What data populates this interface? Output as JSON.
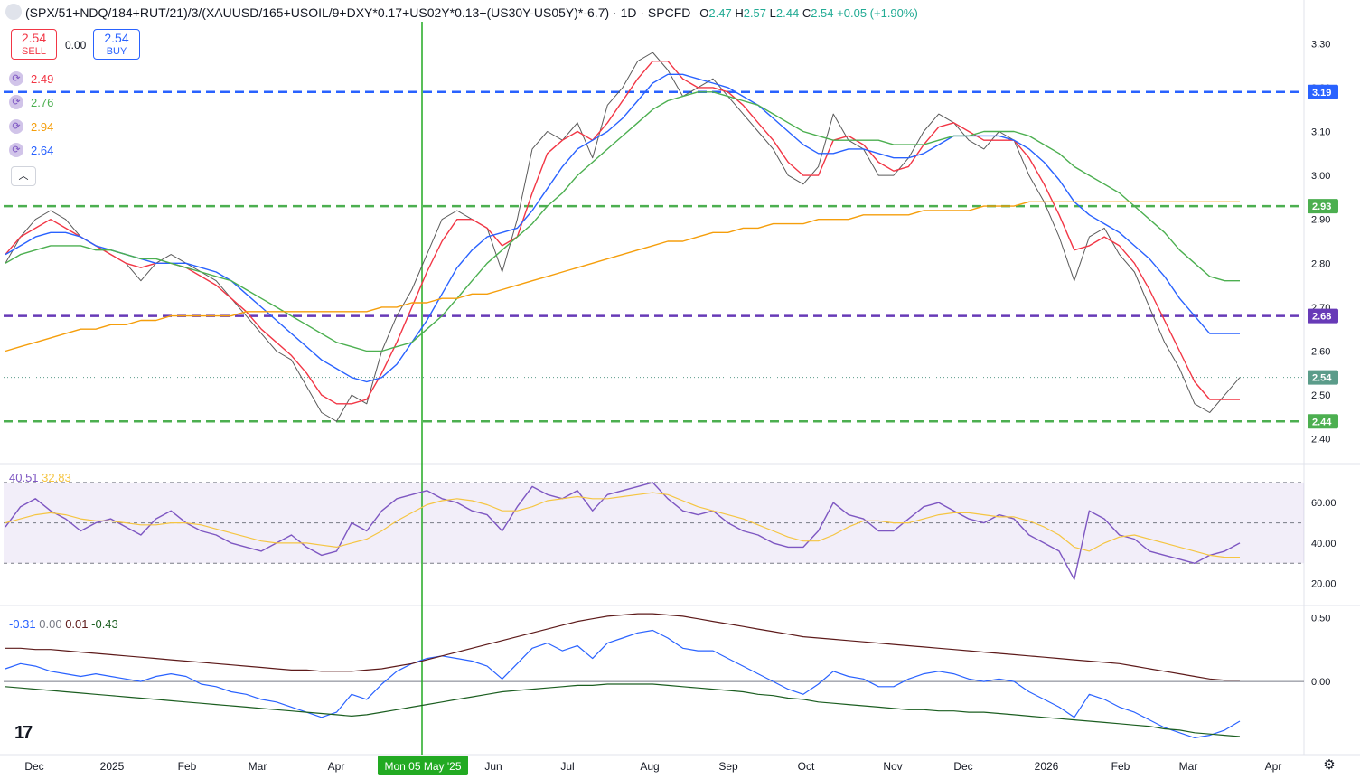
{
  "header": {
    "symbol": "(SPX/51+NDQ/184+RUT/21)/3/(XAUUSD/165+USOIL/9+DXY*0.17+US02Y*0.13+(US30Y-US05Y)*-6.7) · 1D · SPCFD",
    "open_label": "O",
    "open": "2.47",
    "high_label": "H",
    "high": "2.57",
    "low_label": "L",
    "low": "2.44",
    "close_label": "C",
    "close": "2.54",
    "change": "+0.05 (+1.90%)"
  },
  "trade": {
    "sell_price": "2.54",
    "sell_label": "SELL",
    "spread": "0.00",
    "buy_price": "2.54",
    "buy_label": "BUY"
  },
  "moving_averages": [
    {
      "value": "2.49",
      "color": "#f23645",
      "icon": "refresh-icon"
    },
    {
      "value": "2.76",
      "color": "#4caf50",
      "icon": "refresh-icon"
    },
    {
      "value": "2.94",
      "color": "#f59e0b",
      "icon": "refresh-icon"
    },
    {
      "value": "2.64",
      "color": "#2962ff",
      "icon": "refresh-icon"
    }
  ],
  "collapse_icon": "chevron-up-icon",
  "rsi_legend": {
    "rsi": "40.51",
    "rsi_color": "#7e57c2",
    "ma": "32.83",
    "ma_color": "#f5c542"
  },
  "macd_legend": {
    "v1": "-0.31",
    "v1_color": "#2962ff",
    "v2": "0.00",
    "v2_color": "#787b86",
    "v3": "0.01",
    "v3_color": "#5d1a1a",
    "v4": "-0.43",
    "v4_color": "#1b5e20"
  },
  "cursor_date_label": "Mon 05 May '25",
  "chart_data": [
    {
      "type": "line",
      "panel": "price",
      "y_ticks": [
        "2.40",
        "2.50",
        "2.60",
        "2.70",
        "2.80",
        "2.90",
        "3.00",
        "3.10",
        "3.20",
        "3.30"
      ],
      "ylim": [
        2.35,
        3.35
      ],
      "x_labels": [
        "Dec",
        "2025",
        "Feb",
        "Mar",
        "Apr",
        "Mon 05 May '25",
        "Jun",
        "Jul",
        "Aug",
        "Sep",
        "Oct",
        "Nov",
        "Dec",
        "2026",
        "Feb",
        "Mar",
        "Apr"
      ],
      "horizontal_levels": [
        {
          "value": 3.19,
          "label": "3.19",
          "color": "#2962ff",
          "style": "dashed"
        },
        {
          "value": 2.93,
          "label": "2.93",
          "color": "#4caf50",
          "style": "dashed"
        },
        {
          "value": 2.68,
          "label": "2.68",
          "color": "#673ab7",
          "style": "dashed"
        },
        {
          "value": 2.44,
          "label": "2.44",
          "color": "#4caf50",
          "style": "dashed"
        },
        {
          "value": 2.54,
          "label": "2.54",
          "color": "#5b9c8a",
          "style": "dotted"
        }
      ],
      "series": [
        {
          "color": "#5a5a5a",
          "role": "price",
          "values": [
            2.8,
            2.86,
            2.9,
            2.92,
            2.9,
            2.86,
            2.84,
            2.82,
            2.8,
            2.76,
            2.8,
            2.82,
            2.8,
            2.78,
            2.76,
            2.72,
            2.68,
            2.64,
            2.6,
            2.58,
            2.52,
            2.46,
            2.44,
            2.5,
            2.48,
            2.6,
            2.68,
            2.74,
            2.82,
            2.9,
            2.92,
            2.9,
            2.88,
            2.78,
            2.9,
            3.06,
            3.1,
            3.08,
            3.12,
            3.04,
            3.16,
            3.2,
            3.26,
            3.28,
            3.24,
            3.18,
            3.2,
            3.22,
            3.18,
            3.14,
            3.1,
            3.06,
            3.0,
            2.98,
            3.02,
            3.14,
            3.08,
            3.06,
            3.0,
            3.0,
            3.04,
            3.1,
            3.14,
            3.12,
            3.08,
            3.06,
            3.1,
            3.08,
            3.0,
            2.94,
            2.86,
            2.76,
            2.86,
            2.88,
            2.82,
            2.78,
            2.7,
            2.62,
            2.56,
            2.48,
            2.46,
            2.5,
            2.54
          ]
        },
        {
          "color": "#f23645",
          "role": "ma-short",
          "values": [
            2.82,
            2.86,
            2.88,
            2.9,
            2.88,
            2.86,
            2.84,
            2.82,
            2.8,
            2.79,
            2.8,
            2.8,
            2.79,
            2.77,
            2.75,
            2.72,
            2.69,
            2.65,
            2.62,
            2.59,
            2.55,
            2.5,
            2.48,
            2.48,
            2.49,
            2.55,
            2.62,
            2.7,
            2.78,
            2.85,
            2.9,
            2.9,
            2.88,
            2.84,
            2.86,
            2.96,
            3.05,
            3.08,
            3.1,
            3.08,
            3.12,
            3.17,
            3.22,
            3.26,
            3.26,
            3.22,
            3.2,
            3.2,
            3.19,
            3.16,
            3.12,
            3.08,
            3.03,
            3.0,
            3.0,
            3.08,
            3.09,
            3.07,
            3.03,
            3.01,
            3.02,
            3.07,
            3.11,
            3.12,
            3.1,
            3.08,
            3.08,
            3.08,
            3.04,
            2.98,
            2.91,
            2.83,
            2.84,
            2.86,
            2.84,
            2.8,
            2.74,
            2.67,
            2.6,
            2.53,
            2.49,
            2.49,
            2.49
          ]
        },
        {
          "color": "#2962ff",
          "role": "ma-medium",
          "values": [
            2.82,
            2.84,
            2.86,
            2.87,
            2.87,
            2.86,
            2.84,
            2.83,
            2.82,
            2.81,
            2.8,
            2.8,
            2.8,
            2.79,
            2.78,
            2.76,
            2.73,
            2.7,
            2.67,
            2.64,
            2.61,
            2.58,
            2.56,
            2.54,
            2.53,
            2.54,
            2.57,
            2.62,
            2.67,
            2.73,
            2.79,
            2.83,
            2.86,
            2.87,
            2.88,
            2.92,
            2.97,
            3.02,
            3.06,
            3.08,
            3.1,
            3.13,
            3.17,
            3.21,
            3.23,
            3.23,
            3.22,
            3.21,
            3.2,
            3.18,
            3.16,
            3.13,
            3.1,
            3.07,
            3.05,
            3.05,
            3.06,
            3.06,
            3.05,
            3.04,
            3.04,
            3.05,
            3.07,
            3.09,
            3.09,
            3.09,
            3.09,
            3.08,
            3.06,
            3.03,
            2.99,
            2.94,
            2.91,
            2.89,
            2.87,
            2.84,
            2.81,
            2.77,
            2.72,
            2.68,
            2.64,
            2.64,
            2.64
          ]
        },
        {
          "color": "#4caf50",
          "role": "ma-long",
          "values": [
            2.8,
            2.82,
            2.83,
            2.84,
            2.84,
            2.84,
            2.83,
            2.83,
            2.82,
            2.81,
            2.81,
            2.8,
            2.79,
            2.78,
            2.77,
            2.76,
            2.74,
            2.72,
            2.7,
            2.68,
            2.66,
            2.64,
            2.62,
            2.61,
            2.6,
            2.6,
            2.61,
            2.62,
            2.65,
            2.68,
            2.72,
            2.76,
            2.8,
            2.83,
            2.86,
            2.89,
            2.93,
            2.96,
            3.0,
            3.03,
            3.06,
            3.09,
            3.12,
            3.15,
            3.17,
            3.18,
            3.19,
            3.19,
            3.18,
            3.17,
            3.16,
            3.14,
            3.12,
            3.1,
            3.09,
            3.08,
            3.08,
            3.08,
            3.08,
            3.07,
            3.07,
            3.07,
            3.08,
            3.09,
            3.09,
            3.1,
            3.1,
            3.1,
            3.09,
            3.07,
            3.05,
            3.02,
            3.0,
            2.98,
            2.96,
            2.93,
            2.9,
            2.87,
            2.83,
            2.8,
            2.77,
            2.76,
            2.76
          ]
        },
        {
          "color": "#f59e0b",
          "role": "ma-200",
          "values": [
            2.6,
            2.61,
            2.62,
            2.63,
            2.64,
            2.65,
            2.65,
            2.66,
            2.66,
            2.67,
            2.67,
            2.68,
            2.68,
            2.68,
            2.68,
            2.68,
            2.69,
            2.69,
            2.69,
            2.69,
            2.69,
            2.69,
            2.69,
            2.69,
            2.69,
            2.7,
            2.7,
            2.71,
            2.71,
            2.72,
            2.72,
            2.73,
            2.73,
            2.74,
            2.75,
            2.76,
            2.77,
            2.78,
            2.79,
            2.8,
            2.81,
            2.82,
            2.83,
            2.84,
            2.85,
            2.85,
            2.86,
            2.87,
            2.87,
            2.88,
            2.88,
            2.89,
            2.89,
            2.89,
            2.9,
            2.9,
            2.9,
            2.91,
            2.91,
            2.91,
            2.91,
            2.92,
            2.92,
            2.92,
            2.92,
            2.93,
            2.93,
            2.93,
            2.94,
            2.94,
            2.94,
            2.94,
            2.94,
            2.94,
            2.94,
            2.94,
            2.94,
            2.94,
            2.94,
            2.94,
            2.94,
            2.94,
            2.94
          ]
        }
      ]
    },
    {
      "type": "line",
      "panel": "rsi",
      "y_ticks": [
        "20.00",
        "40.00",
        "60.00"
      ],
      "ylim": [
        10,
        78
      ],
      "band": [
        30,
        70
      ],
      "middle": 50,
      "series": [
        {
          "color": "#7e57c2",
          "role": "rsi",
          "values": [
            48,
            58,
            62,
            56,
            52,
            46,
            50,
            52,
            48,
            44,
            52,
            56,
            50,
            46,
            44,
            40,
            38,
            36,
            40,
            44,
            38,
            34,
            36,
            50,
            46,
            56,
            62,
            64,
            66,
            62,
            60,
            56,
            54,
            46,
            58,
            68,
            64,
            62,
            66,
            56,
            64,
            66,
            68,
            70,
            62,
            56,
            54,
            56,
            50,
            46,
            44,
            40,
            38,
            38,
            46,
            60,
            54,
            52,
            46,
            46,
            52,
            58,
            60,
            56,
            52,
            50,
            54,
            52,
            44,
            40,
            36,
            22,
            56,
            52,
            44,
            42,
            36,
            34,
            32,
            30,
            34,
            36,
            40
          ]
        },
        {
          "color": "#f5c542",
          "role": "rsi-ma",
          "values": [
            50,
            52,
            54,
            55,
            54,
            52,
            51,
            51,
            50,
            49,
            49,
            50,
            50,
            49,
            47,
            45,
            43,
            41,
            40,
            40,
            40,
            39,
            38,
            40,
            42,
            46,
            51,
            55,
            59,
            61,
            62,
            61,
            59,
            56,
            56,
            58,
            61,
            62,
            63,
            62,
            62,
            63,
            64,
            65,
            64,
            61,
            58,
            56,
            54,
            52,
            49,
            46,
            43,
            41,
            41,
            44,
            48,
            51,
            51,
            50,
            50,
            52,
            54,
            55,
            55,
            54,
            53,
            53,
            51,
            48,
            44,
            38,
            36,
            40,
            43,
            44,
            42,
            40,
            38,
            36,
            34,
            33,
            33
          ]
        }
      ]
    },
    {
      "type": "line",
      "panel": "macd",
      "y_ticks": [
        "0.00",
        "0.50"
      ],
      "ylim": [
        -0.55,
        0.58
      ],
      "zero": 0,
      "series": [
        {
          "color": "#2962ff",
          "role": "oscillator",
          "values": [
            0.1,
            0.14,
            0.12,
            0.08,
            0.06,
            0.04,
            0.06,
            0.04,
            0.02,
            0.0,
            0.04,
            0.06,
            0.04,
            -0.02,
            -0.04,
            -0.08,
            -0.1,
            -0.14,
            -0.16,
            -0.2,
            -0.24,
            -0.28,
            -0.24,
            -0.1,
            -0.14,
            -0.02,
            0.08,
            0.14,
            0.18,
            0.2,
            0.18,
            0.16,
            0.12,
            0.02,
            0.14,
            0.26,
            0.3,
            0.24,
            0.28,
            0.18,
            0.3,
            0.34,
            0.38,
            0.4,
            0.34,
            0.26,
            0.24,
            0.24,
            0.18,
            0.12,
            0.06,
            0.0,
            -0.06,
            -0.1,
            -0.02,
            0.08,
            0.04,
            0.02,
            -0.04,
            -0.04,
            0.02,
            0.06,
            0.08,
            0.06,
            0.02,
            0.0,
            0.02,
            0.0,
            -0.08,
            -0.14,
            -0.2,
            -0.28,
            -0.1,
            -0.14,
            -0.2,
            -0.24,
            -0.3,
            -0.36,
            -0.4,
            -0.44,
            -0.42,
            -0.38,
            -0.31
          ]
        },
        {
          "color": "#5d1a1a",
          "role": "upper",
          "values": [
            0.26,
            0.26,
            0.25,
            0.25,
            0.24,
            0.23,
            0.22,
            0.21,
            0.2,
            0.19,
            0.18,
            0.17,
            0.16,
            0.15,
            0.14,
            0.13,
            0.12,
            0.11,
            0.1,
            0.09,
            0.09,
            0.08,
            0.08,
            0.08,
            0.09,
            0.1,
            0.12,
            0.14,
            0.17,
            0.2,
            0.23,
            0.26,
            0.29,
            0.32,
            0.35,
            0.38,
            0.41,
            0.44,
            0.47,
            0.49,
            0.51,
            0.52,
            0.53,
            0.53,
            0.52,
            0.51,
            0.49,
            0.47,
            0.45,
            0.43,
            0.41,
            0.39,
            0.37,
            0.35,
            0.34,
            0.33,
            0.32,
            0.31,
            0.3,
            0.29,
            0.28,
            0.27,
            0.26,
            0.25,
            0.24,
            0.23,
            0.22,
            0.21,
            0.2,
            0.19,
            0.18,
            0.17,
            0.16,
            0.15,
            0.14,
            0.12,
            0.1,
            0.08,
            0.06,
            0.04,
            0.02,
            0.01,
            0.01
          ]
        },
        {
          "color": "#1b5e20",
          "role": "lower",
          "values": [
            -0.04,
            -0.05,
            -0.06,
            -0.07,
            -0.08,
            -0.09,
            -0.1,
            -0.11,
            -0.12,
            -0.13,
            -0.14,
            -0.15,
            -0.16,
            -0.17,
            -0.18,
            -0.19,
            -0.2,
            -0.21,
            -0.22,
            -0.23,
            -0.24,
            -0.25,
            -0.26,
            -0.27,
            -0.26,
            -0.24,
            -0.22,
            -0.2,
            -0.18,
            -0.16,
            -0.14,
            -0.12,
            -0.1,
            -0.08,
            -0.07,
            -0.06,
            -0.05,
            -0.04,
            -0.03,
            -0.03,
            -0.02,
            -0.02,
            -0.02,
            -0.02,
            -0.03,
            -0.04,
            -0.05,
            -0.06,
            -0.07,
            -0.08,
            -0.1,
            -0.11,
            -0.13,
            -0.14,
            -0.16,
            -0.17,
            -0.18,
            -0.19,
            -0.2,
            -0.21,
            -0.22,
            -0.22,
            -0.23,
            -0.23,
            -0.24,
            -0.24,
            -0.25,
            -0.26,
            -0.27,
            -0.28,
            -0.29,
            -0.3,
            -0.31,
            -0.32,
            -0.33,
            -0.34,
            -0.35,
            -0.37,
            -0.38,
            -0.4,
            -0.41,
            -0.42,
            -0.43
          ]
        }
      ]
    }
  ]
}
